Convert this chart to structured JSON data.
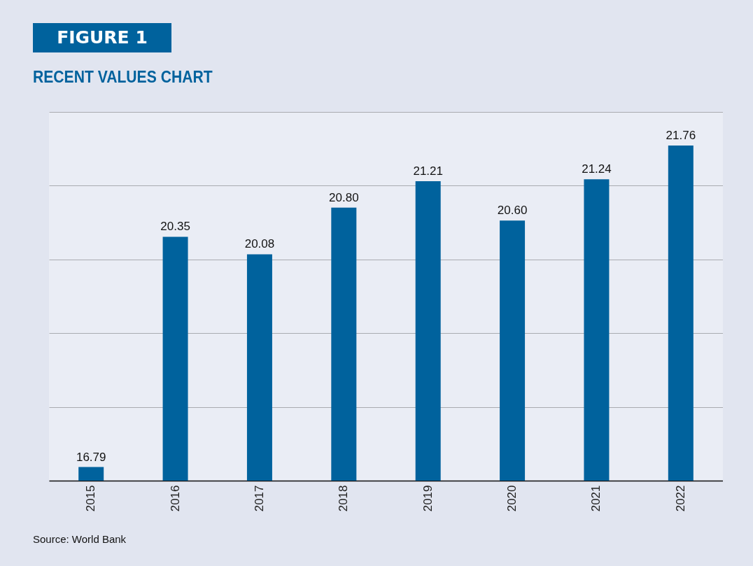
{
  "chart_data": {
    "type": "bar",
    "title": "FIGURE 1",
    "subtitle": "RECENT VALUES CHART",
    "categories": [
      "2015",
      "2016",
      "2017",
      "2018",
      "2019",
      "2020",
      "2021",
      "2022"
    ],
    "values": [
      16.79,
      20.35,
      20.08,
      20.8,
      21.21,
      20.6,
      21.24,
      21.76
    ],
    "value_labels": [
      "16.79",
      "20.35",
      "20.08",
      "20.80",
      "21.21",
      "20.60",
      "21.24",
      "21.76"
    ],
    "color": "#00629d",
    "ylim": [
      16.58,
      22.28
    ],
    "yticks": [
      {
        "value": 16.58,
        "label": null
      },
      {
        "value": 17.72,
        "label": null
      },
      {
        "value": 18.86,
        "label": null
      },
      {
        "value": 20.0,
        "label": null
      },
      {
        "value": 21.14,
        "label": null
      },
      {
        "value": 22.28,
        "label": null
      }
    ],
    "grid": "y",
    "tick_labels": "x",
    "annotations": [
      "Source: World Bank"
    ]
  }
}
